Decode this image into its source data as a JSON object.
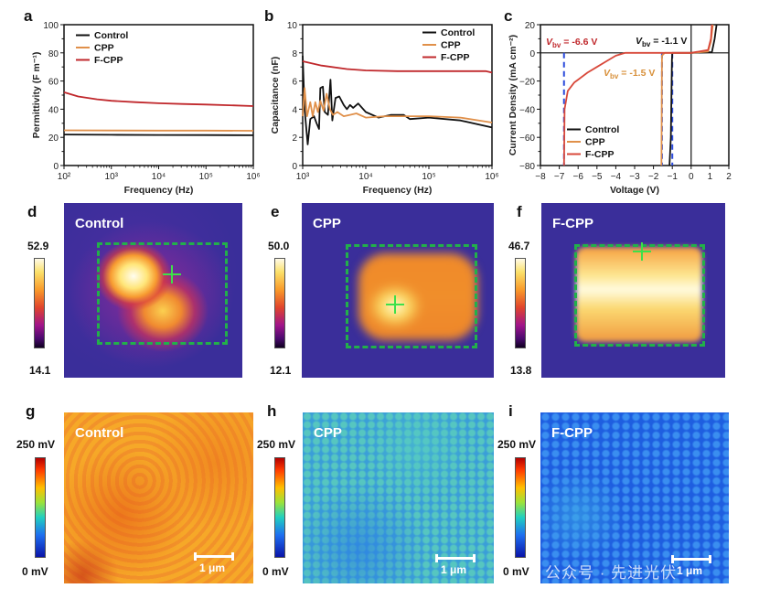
{
  "panel_labels": {
    "a": "a",
    "b": "b",
    "c": "c",
    "d": "d",
    "e": "e",
    "f": "f",
    "g": "g",
    "h": "h",
    "i": "i"
  },
  "maps_row1": [
    {
      "name": "Control",
      "cb_max": "52.9",
      "cb_min": "14.1"
    },
    {
      "name": "CPP",
      "cb_max": "50.0",
      "cb_min": "12.1"
    },
    {
      "name": "F-CPP",
      "cb_max": "46.7",
      "cb_min": "13.8"
    }
  ],
  "maps_row2": [
    {
      "name": "Control",
      "cb_max": "250 mV",
      "cb_min": "0 mV",
      "scale": "1 μm"
    },
    {
      "name": "CPP",
      "cb_max": "250 mV",
      "cb_min": "0 mV",
      "scale": "1 μm"
    },
    {
      "name": "F-CPP",
      "cb_max": "250 mV",
      "cb_min": "0 mV",
      "scale": "1 μm"
    }
  ],
  "watermark": "公众号 · 先进光伏",
  "chart_data": [
    {
      "type": "line",
      "panel": "a",
      "xscale": "log10",
      "x_is_log10_exponent": true,
      "xlabel": "Frequency (Hz)",
      "ylabel": "Permittivity (F m⁻¹)",
      "xlim": [
        2,
        6
      ],
      "ylim": [
        0,
        100
      ],
      "xticks": [
        2,
        3,
        4,
        5,
        6
      ],
      "xtick_labels": [
        "10²",
        "10³",
        "10⁴",
        "10⁵",
        "10⁶"
      ],
      "yticks": [
        0,
        20,
        40,
        60,
        80,
        100
      ],
      "ytick_labels": [
        "0",
        "20",
        "40",
        "60",
        "80",
        "100"
      ],
      "legend": "top-left",
      "series": [
        {
          "name": "Control",
          "color": "#111111",
          "points": [
            [
              2,
              22
            ],
            [
              3,
              21.8
            ],
            [
              4,
              21.7
            ],
            [
              5,
              21.6
            ],
            [
              6,
              21.5
            ]
          ]
        },
        {
          "name": "CPP",
          "color": "#e0904a",
          "points": [
            [
              2,
              25
            ],
            [
              3,
              24.9
            ],
            [
              4,
              24.8
            ],
            [
              5,
              24.8
            ],
            [
              6,
              24.7
            ]
          ]
        },
        {
          "name": "F-CPP",
          "color": "#c0282c",
          "points": [
            [
              2,
              52
            ],
            [
              2.3,
              49
            ],
            [
              2.7,
              47
            ],
            [
              3,
              46
            ],
            [
              3.5,
              45
            ],
            [
              4,
              44.2
            ],
            [
              4.5,
              43.7
            ],
            [
              5,
              43.3
            ],
            [
              5.5,
              42.8
            ],
            [
              6,
              42.2
            ]
          ]
        }
      ]
    },
    {
      "type": "line",
      "panel": "b",
      "xscale": "log10",
      "x_is_log10_exponent": true,
      "xlabel": "Frequency (Hz)",
      "ylabel": "Capacitance (nF)",
      "xlim": [
        3,
        6
      ],
      "ylim": [
        0,
        10
      ],
      "xticks": [
        3,
        4,
        5,
        6
      ],
      "xtick_labels": [
        "10³",
        "10⁴",
        "10⁵",
        "10⁶"
      ],
      "yticks": [
        0,
        2,
        4,
        6,
        8,
        10
      ],
      "ytick_labels": [
        "0",
        "2",
        "4",
        "6",
        "8",
        "10"
      ],
      "legend": "top-right",
      "series": [
        {
          "name": "Control",
          "color": "#111111",
          "points": [
            [
              3,
              7.8
            ],
            [
              3.03,
              4.0
            ],
            [
              3.08,
              1.5
            ],
            [
              3.12,
              3.3
            ],
            [
              3.18,
              3.5
            ],
            [
              3.22,
              3.0
            ],
            [
              3.26,
              2.6
            ],
            [
              3.28,
              5.5
            ],
            [
              3.32,
              5.6
            ],
            [
              3.35,
              3.8
            ],
            [
              3.4,
              3.6
            ],
            [
              3.44,
              6.1
            ],
            [
              3.47,
              3.2
            ],
            [
              3.52,
              4.8
            ],
            [
              3.58,
              4.9
            ],
            [
              3.65,
              4.3
            ],
            [
              3.7,
              4.0
            ],
            [
              3.75,
              4.3
            ],
            [
              3.8,
              4.1
            ],
            [
              3.88,
              4.4
            ],
            [
              4.0,
              3.8
            ],
            [
              4.2,
              3.4
            ],
            [
              4.4,
              3.6
            ],
            [
              4.6,
              3.6
            ],
            [
              4.7,
              3.3
            ],
            [
              5.0,
              3.4
            ],
            [
              5.5,
              3.2
            ],
            [
              6.0,
              2.7
            ]
          ]
        },
        {
          "name": "CPP",
          "color": "#e0904a",
          "points": [
            [
              3,
              3.5
            ],
            [
              3.03,
              5.5
            ],
            [
              3.07,
              3.5
            ],
            [
              3.12,
              4.5
            ],
            [
              3.16,
              3.5
            ],
            [
              3.2,
              4.5
            ],
            [
              3.24,
              3.8
            ],
            [
              3.28,
              4.6
            ],
            [
              3.33,
              3.9
            ],
            [
              3.38,
              5.1
            ],
            [
              3.43,
              4.0
            ],
            [
              3.48,
              3.6
            ],
            [
              3.55,
              3.8
            ],
            [
              3.65,
              3.5
            ],
            [
              3.75,
              3.6
            ],
            [
              3.85,
              3.7
            ],
            [
              4.0,
              3.4
            ],
            [
              4.3,
              3.5
            ],
            [
              4.6,
              3.5
            ],
            [
              5.0,
              3.5
            ],
            [
              5.5,
              3.4
            ],
            [
              6.0,
              3.05
            ]
          ]
        },
        {
          "name": "F-CPP",
          "color": "#c0282c",
          "points": [
            [
              3,
              7.4
            ],
            [
              3.3,
              7.1
            ],
            [
              3.7,
              6.85
            ],
            [
              4,
              6.75
            ],
            [
              4.5,
              6.7
            ],
            [
              5,
              6.7
            ],
            [
              5.5,
              6.7
            ],
            [
              5.9,
              6.7
            ],
            [
              6,
              6.6
            ]
          ]
        }
      ]
    },
    {
      "type": "line",
      "panel": "c",
      "xlabel": "Voltage (V)",
      "ylabel": "Current Density (mA cm⁻²)",
      "xlim": [
        -8,
        2
      ],
      "ylim": [
        -80,
        20
      ],
      "xticks": [
        -8,
        -7,
        -6,
        -5,
        -4,
        -3,
        -2,
        -1,
        0,
        1,
        2
      ],
      "xtick_labels": [
        "−8",
        "−7",
        "−6",
        "−5",
        "−4",
        "−3",
        "−2",
        "−1",
        "0",
        "1",
        "2"
      ],
      "yticks": [
        -80,
        -60,
        -40,
        -20,
        0,
        20
      ],
      "ytick_labels": [
        "−80",
        "−60",
        "−40",
        "−20",
        "0",
        "20"
      ],
      "legend": "bottom-left",
      "series": [
        {
          "name": "Control",
          "color": "#111111",
          "points": [
            [
              -1.15,
              -80
            ],
            [
              -1.08,
              -60
            ],
            [
              -1.02,
              -5
            ],
            [
              -1.0,
              0
            ],
            [
              0,
              0
            ],
            [
              1.1,
              0.5
            ],
            [
              1.25,
              10
            ],
            [
              1.35,
              20
            ]
          ]
        },
        {
          "name": "CPP",
          "color": "#e0904a",
          "points": [
            [
              -1.58,
              -80
            ],
            [
              -1.55,
              -2
            ],
            [
              -1.4,
              0
            ],
            [
              0,
              0
            ],
            [
              0.9,
              1
            ],
            [
              1.05,
              8
            ],
            [
              1.15,
              20
            ]
          ]
        },
        {
          "name": "F-CPP",
          "color": "#d8483a",
          "points": [
            [
              -6.75,
              -80
            ],
            [
              -6.72,
              -40
            ],
            [
              -6.55,
              -27
            ],
            [
              -6.2,
              -21
            ],
            [
              -6.0,
              -19
            ],
            [
              -5.5,
              -14
            ],
            [
              -5.0,
              -10
            ],
            [
              -4.5,
              -6
            ],
            [
              -4.0,
              -2
            ],
            [
              -3.5,
              0
            ],
            [
              0,
              0
            ],
            [
              0.9,
              2
            ],
            [
              1.05,
              10
            ],
            [
              1.1,
              20
            ]
          ]
        }
      ],
      "vlines": [
        {
          "x": -6.75,
          "color": "#2a4adc"
        },
        {
          "x": -1.55,
          "color": "#2a4adc"
        },
        {
          "x": -1.0,
          "color": "#2a4adc"
        }
      ],
      "annotations": [
        {
          "var": "V",
          "sub": "bv",
          "text": " = -6.6 V",
          "color": "#c0282c"
        },
        {
          "var": "V",
          "sub": "bv",
          "text": " = -1.1 V",
          "color": "#111111"
        },
        {
          "var": "V",
          "sub": "bv",
          "text": " = -1.5 V",
          "color": "#d8903a"
        }
      ]
    }
  ]
}
